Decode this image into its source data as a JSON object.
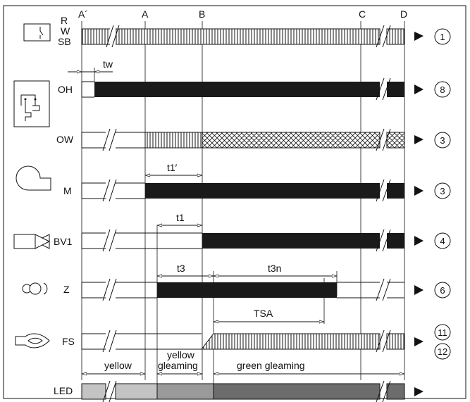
{
  "columns": [
    "A´",
    "A",
    "B",
    "C",
    "D"
  ],
  "rows": [
    {
      "id": "rw",
      "labels": [
        "R",
        "W",
        "SB"
      ],
      "arrow": "left",
      "circle": "1"
    },
    {
      "id": "oh",
      "labels": [
        "OH"
      ],
      "arrow": "right",
      "circle": "8"
    },
    {
      "id": "ow",
      "labels": [
        "OW"
      ],
      "arrow": "left",
      "circle": "3"
    },
    {
      "id": "m",
      "labels": [
        "M"
      ],
      "arrow": "right",
      "circle": "3"
    },
    {
      "id": "bv1",
      "labels": [
        "BV1"
      ],
      "arrow": "right",
      "circle": "4"
    },
    {
      "id": "z",
      "labels": [
        "Z"
      ],
      "arrow": "right",
      "circle": "6"
    },
    {
      "id": "fs",
      "labels": [
        "FS"
      ],
      "arrow": "left",
      "circle": "11",
      "circle2": "12"
    },
    {
      "id": "led",
      "labels": [
        "LED"
      ],
      "arrow": "left"
    }
  ],
  "timings": {
    "tw": "tw",
    "t1_prime": "t1′",
    "t1": "t1",
    "t3": "t3",
    "t3n": "t3n",
    "tsa": "TSA"
  },
  "led_phases": {
    "yellow": "yellow",
    "yellow_gleaming_line1": "yellow",
    "yellow_gleaming_line2": "gleaming",
    "green_gleaming": "green gleaming"
  },
  "colors": {
    "line": "#111111",
    "fill_dark": "#1a1a1a",
    "led_yellow": "#c4c4c4",
    "led_yellow_gleaming": "#9a9a9a",
    "led_green_gleaming": "#6c6c6c"
  }
}
